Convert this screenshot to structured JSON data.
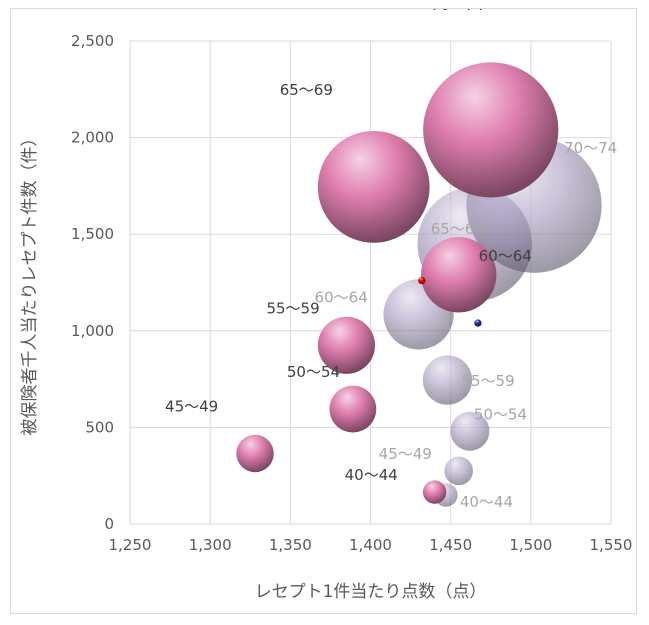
{
  "chart_data": {
    "type": "bubble",
    "title": "",
    "xlabel": "レセプト1件当たり点数（点）",
    "ylabel": "被保険者千人当たりレセプト件数（件）",
    "xlim": [
      1250,
      1550
    ],
    "ylim": [
      0,
      2500
    ],
    "xticks": [
      "1,250",
      "1,300",
      "1,350",
      "1,400",
      "1,450",
      "1,500",
      "1,550"
    ],
    "yticks": [
      "0",
      "500",
      "1,000",
      "1,500",
      "2,000",
      "2,500"
    ],
    "grid": true,
    "series": [
      {
        "color": "#a99cc2",
        "label_color": "#a6a6a6",
        "points": [
          {
            "label": "40～44",
            "x": 1447,
            "y": 150,
            "size": 0.45
          },
          {
            "label": "45～49",
            "x": 1455,
            "y": 275,
            "size": 0.55
          },
          {
            "label": "50～54",
            "x": 1462,
            "y": 480,
            "size": 0.75
          },
          {
            "label": "55～59",
            "x": 1448,
            "y": 745,
            "size": 0.95
          },
          {
            "label": "60～64",
            "x": 1430,
            "y": 1085,
            "size": 1.35
          },
          {
            "label": "65～69",
            "x": 1465,
            "y": 1450,
            "size": 2.2
          },
          {
            "label": "70～74",
            "x": 1502,
            "y": 1650,
            "size": 2.6
          }
        ]
      },
      {
        "color": "#e07fb0",
        "label_color": "#404040",
        "points": [
          {
            "label": "40～44",
            "x": 1440,
            "y": 165,
            "size": 0.45
          },
          {
            "label": "45～49",
            "x": 1328,
            "y": 365,
            "size": 0.72
          },
          {
            "label": "50～54",
            "x": 1389,
            "y": 595,
            "size": 0.9
          },
          {
            "label": "55～59",
            "x": 1385,
            "y": 925,
            "size": 1.1
          },
          {
            "label": "60～64",
            "x": 1455,
            "y": 1290,
            "size": 1.45
          },
          {
            "label": "65～69",
            "x": 1402,
            "y": 1745,
            "size": 2.15
          },
          {
            "label": "70～74",
            "x": 1475,
            "y": 2040,
            "size": 2.6
          }
        ]
      },
      {
        "color": "#e00000",
        "points": [
          {
            "x": 1432,
            "y": 1260,
            "size": 0.14
          }
        ]
      },
      {
        "color": "#1f2aa8",
        "points": [
          {
            "x": 1467,
            "y": 1040,
            "size": 0.14
          }
        ]
      }
    ]
  }
}
